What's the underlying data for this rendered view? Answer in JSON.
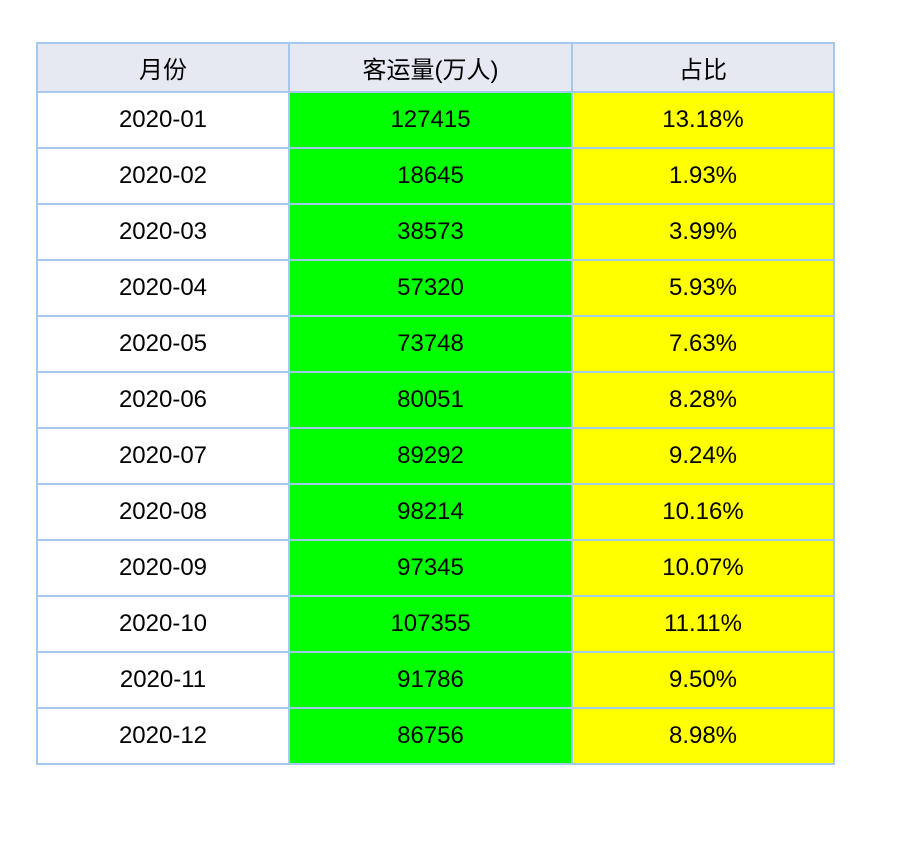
{
  "colors": {
    "border": "#A5C9EE",
    "header_bg": "#E6E8F2",
    "month_cell_bg": "#FFFFFF",
    "volume_cell_bg": "#00FF00",
    "share_cell_bg": "#FFFF00",
    "text": "#000000",
    "page_bg": "#FFFFFF"
  },
  "table": {
    "headers": [
      "月份",
      "客运量(万人)",
      "占比"
    ],
    "rows": [
      {
        "month": "2020-01",
        "volume": "127415",
        "share": "13.18%"
      },
      {
        "month": "2020-02",
        "volume": "18645",
        "share": "1.93%"
      },
      {
        "month": "2020-03",
        "volume": "38573",
        "share": "3.99%"
      },
      {
        "month": "2020-04",
        "volume": "57320",
        "share": "5.93%"
      },
      {
        "month": "2020-05",
        "volume": "73748",
        "share": "7.63%"
      },
      {
        "month": "2020-06",
        "volume": "80051",
        "share": "8.28%"
      },
      {
        "month": "2020-07",
        "volume": "89292",
        "share": "9.24%"
      },
      {
        "month": "2020-08",
        "volume": "98214",
        "share": "10.16%"
      },
      {
        "month": "2020-09",
        "volume": "97345",
        "share": "10.07%"
      },
      {
        "month": "2020-10",
        "volume": "107355",
        "share": "11.11%"
      },
      {
        "month": "2020-11",
        "volume": "91786",
        "share": "9.50%"
      },
      {
        "month": "2020-12",
        "volume": "86756",
        "share": "8.98%"
      }
    ]
  },
  "chart_data": {
    "type": "table",
    "columns": [
      "月份",
      "客运量(万人)",
      "占比"
    ],
    "rows": [
      [
        "2020-01",
        127415,
        "13.18%"
      ],
      [
        "2020-02",
        18645,
        "1.93%"
      ],
      [
        "2020-03",
        38573,
        "3.99%"
      ],
      [
        "2020-04",
        57320,
        "5.93%"
      ],
      [
        "2020-05",
        73748,
        "7.63%"
      ],
      [
        "2020-06",
        80051,
        "8.28%"
      ],
      [
        "2020-07",
        89292,
        "9.24%"
      ],
      [
        "2020-08",
        98214,
        "10.16%"
      ],
      [
        "2020-09",
        97345,
        "10.07%"
      ],
      [
        "2020-10",
        107355,
        "11.11%"
      ],
      [
        "2020-11",
        91786,
        "9.50%"
      ],
      [
        "2020-12",
        86756,
        "8.98%"
      ]
    ],
    "notes": {
      "volume_column_bg": "#00FF00",
      "share_column_bg": "#FFFF00",
      "header_bg": "#E6E8F2",
      "grid_border": "#A5C9EE"
    }
  }
}
